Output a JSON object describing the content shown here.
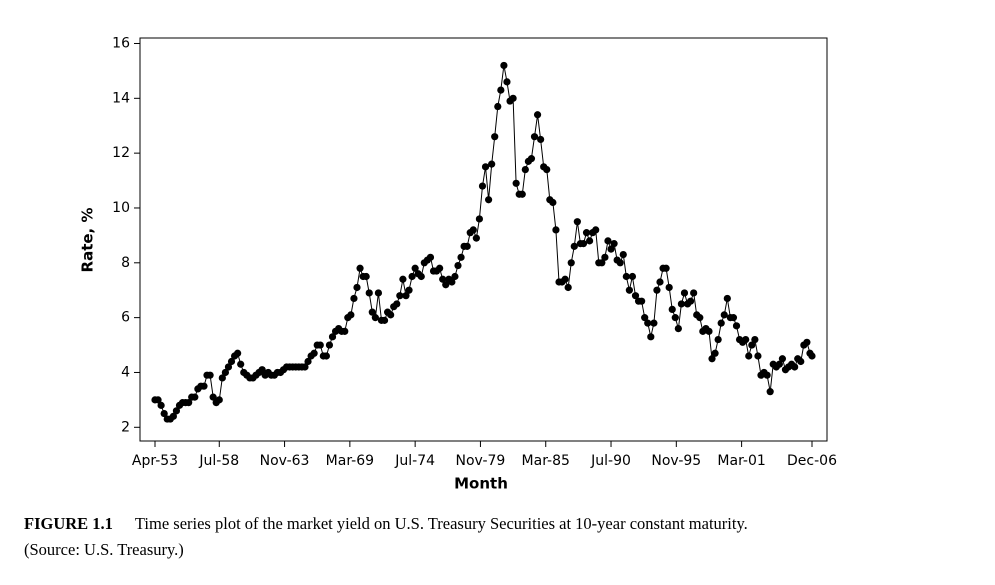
{
  "chart_data": {
    "type": "line",
    "x_label": "Month",
    "y_label": "Rate, %",
    "ylim": [
      1.5,
      16.2
    ],
    "yticks": [
      2,
      4,
      6,
      8,
      10,
      12,
      14,
      16
    ],
    "xticks": [
      {
        "value": "1953-04",
        "label": "Apr-53"
      },
      {
        "value": "1958-07",
        "label": "Jul-58"
      },
      {
        "value": "1963-11",
        "label": "Nov-63"
      },
      {
        "value": "1969-03",
        "label": "Mar-69"
      },
      {
        "value": "1974-07",
        "label": "Jul-74"
      },
      {
        "value": "1979-11",
        "label": "Nov-79"
      },
      {
        "value": "1985-03",
        "label": "Mar-85"
      },
      {
        "value": "1990-07",
        "label": "Jul-90"
      },
      {
        "value": "1995-11",
        "label": "Nov-95"
      },
      {
        "value": "2001-03",
        "label": "Mar-01"
      },
      {
        "value": "2006-12",
        "label": "Dec-06"
      }
    ],
    "color": "#000000",
    "markers": true,
    "x": [
      "1953-04",
      "1953-07",
      "1953-10",
      "1954-01",
      "1954-04",
      "1954-07",
      "1954-10",
      "1955-01",
      "1955-04",
      "1955-07",
      "1955-10",
      "1956-01",
      "1956-04",
      "1956-07",
      "1956-10",
      "1957-01",
      "1957-04",
      "1957-07",
      "1957-10",
      "1958-01",
      "1958-04",
      "1958-07",
      "1958-10",
      "1959-01",
      "1959-04",
      "1959-07",
      "1959-10",
      "1960-01",
      "1960-04",
      "1960-07",
      "1960-10",
      "1961-01",
      "1961-04",
      "1961-07",
      "1961-10",
      "1962-01",
      "1962-04",
      "1962-07",
      "1962-10",
      "1963-01",
      "1963-04",
      "1963-07",
      "1963-10",
      "1964-01",
      "1964-04",
      "1964-07",
      "1964-10",
      "1965-01",
      "1965-04",
      "1965-07",
      "1965-10",
      "1966-01",
      "1966-04",
      "1966-07",
      "1966-10",
      "1967-01",
      "1967-04",
      "1967-07",
      "1967-10",
      "1968-01",
      "1968-04",
      "1968-07",
      "1968-10",
      "1969-01",
      "1969-04",
      "1969-07",
      "1969-10",
      "1970-01",
      "1970-04",
      "1970-07",
      "1970-10",
      "1971-01",
      "1971-04",
      "1971-07",
      "1971-10",
      "1972-01",
      "1972-04",
      "1972-07",
      "1972-10",
      "1973-01",
      "1973-04",
      "1973-07",
      "1973-10",
      "1974-01",
      "1974-04",
      "1974-07",
      "1974-10",
      "1975-01",
      "1975-04",
      "1975-07",
      "1975-10",
      "1976-01",
      "1976-04",
      "1976-07",
      "1976-10",
      "1977-01",
      "1977-04",
      "1977-07",
      "1977-10",
      "1978-01",
      "1978-04",
      "1978-07",
      "1978-10",
      "1979-01",
      "1979-04",
      "1979-07",
      "1979-10",
      "1980-01",
      "1980-04",
      "1980-07",
      "1980-10",
      "1981-01",
      "1981-04",
      "1981-07",
      "1981-10",
      "1982-01",
      "1982-04",
      "1982-07",
      "1982-10",
      "1983-01",
      "1983-04",
      "1983-07",
      "1983-10",
      "1984-01",
      "1984-04",
      "1984-07",
      "1984-10",
      "1985-01",
      "1985-04",
      "1985-07",
      "1985-10",
      "1986-01",
      "1986-04",
      "1986-07",
      "1986-10",
      "1987-01",
      "1987-04",
      "1987-07",
      "1987-10",
      "1988-01",
      "1988-04",
      "1988-07",
      "1988-10",
      "1989-01",
      "1989-04",
      "1989-07",
      "1989-10",
      "1990-01",
      "1990-04",
      "1990-07",
      "1990-10",
      "1991-01",
      "1991-04",
      "1991-07",
      "1991-10",
      "1992-01",
      "1992-04",
      "1992-07",
      "1992-10",
      "1993-01",
      "1993-04",
      "1993-07",
      "1993-10",
      "1994-01",
      "1994-04",
      "1994-07",
      "1994-10",
      "1995-01",
      "1995-04",
      "1995-07",
      "1995-10",
      "1996-01",
      "1996-04",
      "1996-07",
      "1996-10",
      "1997-01",
      "1997-04",
      "1997-07",
      "1997-10",
      "1998-01",
      "1998-04",
      "1998-07",
      "1998-10",
      "1999-01",
      "1999-04",
      "1999-07",
      "1999-10",
      "2000-01",
      "2000-04",
      "2000-07",
      "2000-10",
      "2001-01",
      "2001-04",
      "2001-07",
      "2001-10",
      "2002-01",
      "2002-04",
      "2002-07",
      "2002-10",
      "2003-01",
      "2003-04",
      "2003-07",
      "2003-10",
      "2004-01",
      "2004-04",
      "2004-07",
      "2004-10",
      "2005-01",
      "2005-04",
      "2005-07",
      "2005-10",
      "2006-01",
      "2006-04",
      "2006-07",
      "2006-10",
      "2006-12"
    ],
    "values": [
      3.0,
      3.0,
      2.8,
      2.5,
      2.3,
      2.3,
      2.4,
      2.6,
      2.8,
      2.9,
      2.9,
      2.9,
      3.1,
      3.1,
      3.4,
      3.5,
      3.5,
      3.9,
      3.9,
      3.1,
      2.9,
      3.0,
      3.8,
      4.0,
      4.2,
      4.4,
      4.6,
      4.7,
      4.3,
      4.0,
      3.9,
      3.8,
      3.8,
      3.9,
      4.0,
      4.1,
      3.9,
      4.0,
      3.9,
      3.9,
      4.0,
      4.0,
      4.1,
      4.2,
      4.2,
      4.2,
      4.2,
      4.2,
      4.2,
      4.2,
      4.4,
      4.6,
      4.7,
      5.0,
      5.0,
      4.6,
      4.6,
      5.0,
      5.3,
      5.5,
      5.6,
      5.5,
      5.5,
      6.0,
      6.1,
      6.7,
      7.1,
      7.8,
      7.5,
      7.5,
      6.9,
      6.2,
      6.0,
      6.9,
      5.9,
      5.9,
      6.2,
      6.1,
      6.4,
      6.5,
      6.8,
      7.4,
      6.8,
      7.0,
      7.5,
      7.8,
      7.6,
      7.5,
      8.0,
      8.1,
      8.2,
      7.7,
      7.7,
      7.8,
      7.4,
      7.2,
      7.4,
      7.3,
      7.5,
      7.9,
      8.2,
      8.6,
      8.6,
      9.1,
      9.2,
      8.9,
      9.6,
      10.8,
      11.5,
      10.3,
      11.6,
      12.6,
      13.7,
      14.3,
      15.2,
      14.6,
      13.9,
      14.0,
      10.9,
      10.5,
      10.5,
      11.4,
      11.7,
      11.8,
      12.6,
      13.4,
      12.5,
      11.5,
      11.4,
      10.3,
      10.2,
      9.2,
      7.3,
      7.3,
      7.4,
      7.1,
      8.0,
      8.6,
      9.5,
      8.7,
      8.7,
      9.1,
      8.8,
      9.1,
      9.2,
      8.0,
      8.0,
      8.2,
      8.8,
      8.5,
      8.7,
      8.1,
      8.0,
      8.3,
      7.5,
      7.0,
      7.5,
      6.8,
      6.6,
      6.6,
      6.0,
      5.8,
      5.3,
      5.8,
      7.0,
      7.3,
      7.8,
      7.8,
      7.1,
      6.3,
      6.0,
      5.6,
      6.5,
      6.9,
      6.5,
      6.6,
      6.9,
      6.1,
      6.0,
      5.5,
      5.6,
      5.5,
      4.5,
      4.7,
      5.2,
      5.8,
      6.1,
      6.7,
      6.0,
      6.0,
      5.7,
      5.2,
      5.1,
      5.2,
      4.6,
      5.0,
      5.2,
      4.6,
      3.9,
      4.0,
      3.9,
      3.3,
      4.3,
      4.2,
      4.3,
      4.5,
      4.1,
      4.2,
      4.3,
      4.2,
      4.5,
      4.4,
      5.0,
      5.1,
      4.7,
      4.6
    ]
  },
  "caption": {
    "label": "FIGURE 1.1",
    "text": "Time series plot of the market yield on U.S. Treasury Securities at 10-year constant maturity.",
    "source": "(Source: U.S. Treasury.)"
  }
}
